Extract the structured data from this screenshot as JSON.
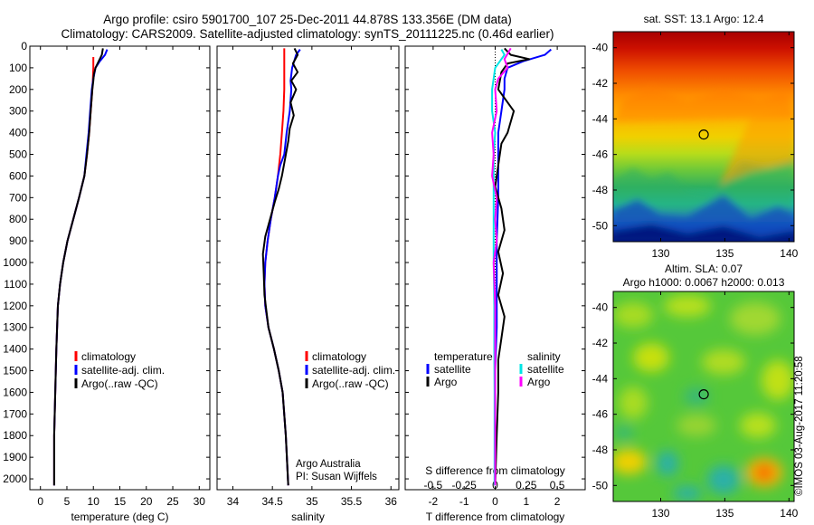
{
  "header": {
    "line1": "Argo profile: csiro 5901700_107 25-Dec-2011 44.878S 133.356E (DM data)",
    "line2": "Climatology: CARS2009. Satellite-adjusted climatology: synTS_20111225.nc (0.46d earlier)"
  },
  "credit": {
    "org": "Argo Australia",
    "pi": "PI: Susan Wijffels"
  },
  "timestamp": "©IMOS 03-Aug-2017 11:20:58",
  "colors": {
    "climatology": "#ff0000",
    "satellite": "#0000ff",
    "argo": "#000000",
    "sal_satellite": "#00e5e5",
    "sal_argo": "#ff00ff"
  },
  "chart_data": [
    {
      "id": "temperature",
      "type": "line",
      "xlabel": "temperature (deg C)",
      "x_ticks": [
        0,
        5,
        10,
        15,
        20,
        25,
        30
      ],
      "xlim": [
        -2,
        32
      ],
      "y_ticks": [
        0,
        100,
        200,
        300,
        400,
        500,
        600,
        700,
        800,
        900,
        1000,
        1100,
        1200,
        1300,
        1400,
        1500,
        1600,
        1700,
        1800,
        1900,
        2000
      ],
      "ylim": [
        0,
        2050
      ],
      "y_reversed": true,
      "legend": [
        "climatology",
        "satellite-adj. clim.",
        "Argo(..raw -QC)"
      ],
      "series": [
        {
          "name": "climatology",
          "color": "#ff0000",
          "x": [
            10.0,
            10.0,
            9.9,
            9.8,
            9.5,
            9.2,
            8.8,
            8.3,
            7.3,
            6.2,
            5.1,
            4.3,
            3.7,
            3.3,
            3.0,
            2.8,
            2.6,
            2.6
          ],
          "y": [
            50,
            100,
            150,
            200,
            300,
            400,
            500,
            600,
            700,
            800,
            900,
            1000,
            1100,
            1200,
            1400,
            1600,
            1800,
            2030
          ]
        },
        {
          "name": "satellite-adj. clim.",
          "color": "#0000ff",
          "x": [
            12.6,
            12.2,
            11.2,
            10.4,
            10.0,
            9.7,
            9.4,
            9.1,
            8.7,
            8.3,
            7.3,
            6.2,
            5.1,
            4.3,
            3.7,
            3.3,
            3.0,
            2.8,
            2.6,
            2.6
          ],
          "y": [
            15,
            40,
            70,
            100,
            150,
            200,
            300,
            400,
            500,
            600,
            700,
            800,
            900,
            1000,
            1100,
            1200,
            1400,
            1600,
            1800,
            2030
          ]
        },
        {
          "name": "Argo(..raw -QC)",
          "color": "#000000",
          "x": [
            11.8,
            11.6,
            11.0,
            10.4,
            10.1,
            10.0,
            9.8,
            9.5,
            9.2,
            8.8,
            8.3,
            7.3,
            6.2,
            5.1,
            4.3,
            3.7,
            3.3,
            3.0,
            2.8,
            2.6,
            2.6
          ],
          "y": [
            10,
            40,
            70,
            100,
            130,
            160,
            200,
            300,
            400,
            500,
            600,
            700,
            800,
            900,
            1000,
            1100,
            1200,
            1400,
            1600,
            1800,
            2030
          ]
        }
      ]
    },
    {
      "id": "salinity",
      "type": "line",
      "xlabel": "salinity",
      "x_ticks": [
        34,
        34.5,
        35,
        35.5,
        36
      ],
      "xlim": [
        33.8,
        36.1
      ],
      "y_ticks": [
        0,
        100,
        200,
        300,
        400,
        500,
        600,
        700,
        800,
        900,
        1000,
        1100,
        1200,
        1300,
        1400,
        1500,
        1600,
        1700,
        1800,
        1900,
        2000
      ],
      "ylim": [
        0,
        2050
      ],
      "y_reversed": true,
      "legend": [
        "climatology",
        "satellite-adj. clim.",
        "Argo(..raw -QC)"
      ],
      "series": [
        {
          "name": "climatology",
          "color": "#ff0000",
          "x": [
            34.65,
            34.65,
            34.65,
            34.64,
            34.62,
            34.6,
            34.57,
            34.53,
            34.48,
            34.44,
            34.41,
            34.4,
            34.41,
            34.45,
            34.52,
            34.58,
            34.63,
            34.67,
            34.7
          ],
          "y": [
            10,
            100,
            200,
            300,
            400,
            500,
            600,
            700,
            800,
            900,
            1000,
            1100,
            1200,
            1300,
            1400,
            1500,
            1600,
            1800,
            2030
          ]
        },
        {
          "name": "satellite-adj. clim.",
          "color": "#0000ff",
          "x": [
            34.85,
            34.8,
            34.75,
            34.73,
            34.74,
            34.72,
            34.68,
            34.65,
            34.6,
            34.57,
            34.53,
            34.48,
            34.44,
            34.41,
            34.4,
            34.41,
            34.45,
            34.52,
            34.58,
            34.63,
            34.67,
            34.7
          ],
          "y": [
            15,
            40,
            100,
            160,
            200,
            300,
            400,
            500,
            550,
            600,
            700,
            800,
            900,
            1000,
            1100,
            1200,
            1300,
            1400,
            1500,
            1600,
            1800,
            2030
          ]
        },
        {
          "name": "Argo(..raw -QC)",
          "color": "#000000",
          "x": [
            34.78,
            34.82,
            34.76,
            34.82,
            34.74,
            34.8,
            34.73,
            34.77,
            34.72,
            34.7,
            34.66,
            34.62,
            34.58,
            34.53,
            34.47,
            34.41,
            34.38,
            34.39,
            34.4,
            34.45,
            34.52,
            34.58,
            34.63,
            34.67,
            34.7
          ],
          "y": [
            10,
            40,
            80,
            120,
            160,
            200,
            260,
            320,
            380,
            440,
            520,
            600,
            660,
            720,
            800,
            880,
            960,
            1050,
            1150,
            1300,
            1400,
            1500,
            1600,
            1800,
            2030
          ]
        }
      ]
    },
    {
      "id": "difference",
      "type": "line",
      "xlabel": "T difference from climatology",
      "x_ticks": [
        -2,
        -1,
        0,
        1,
        2
      ],
      "top_label": "S difference from climatology",
      "s_ticks": [
        -0.5,
        -0.25,
        0,
        0.25,
        0.5
      ],
      "xlim": [
        -2.9,
        2.9
      ],
      "y_ticks": [
        0,
        100,
        200,
        300,
        400,
        500,
        600,
        700,
        800,
        900,
        1000,
        1100,
        1200,
        1300,
        1400,
        1500,
        1600,
        1700,
        1800,
        1900,
        2000
      ],
      "ylim": [
        0,
        2050
      ],
      "y_reversed": true,
      "legend_headings": [
        "temperature",
        "salinity"
      ],
      "legend": [
        "satellite",
        "Argo",
        "satellite",
        "Argo"
      ],
      "series": [
        {
          "name": "satellite",
          "group": "temperature",
          "color": "#0000ff",
          "x": [
            1.8,
            1.6,
            0.9,
            0.4,
            0.3,
            0.3,
            0.2,
            0.1,
            0.1,
            0.1,
            0.05,
            0.05,
            0.05,
            0.0,
            0.0,
            0.0,
            0.0
          ],
          "y": [
            15,
            40,
            70,
            100,
            150,
            200,
            300,
            400,
            500,
            700,
            900,
            1100,
            1300,
            1500,
            1700,
            1900,
            2030
          ]
        },
        {
          "name": "Argo",
          "group": "temperature",
          "color": "#000000",
          "x": [
            0.3,
            0.5,
            1.1,
            0.4,
            0.2,
            0.1,
            0.6,
            0.4,
            0.2,
            0.1,
            0.0,
            0.2,
            0.3,
            0.1,
            0.25,
            0.1,
            0.3,
            0.2,
            0.1,
            0.1,
            0.05,
            0.0
          ],
          "y": [
            10,
            40,
            60,
            80,
            120,
            200,
            300,
            400,
            450,
            550,
            650,
            750,
            850,
            950,
            1050,
            1150,
            1250,
            1350,
            1450,
            1600,
            1800,
            2030
          ]
        },
        {
          "name": "satellite",
          "group": "salinity",
          "color": "#00e5e5",
          "x": [
            0.2,
            0.3,
            0.0,
            -0.1,
            -0.1,
            0.0,
            -0.05,
            -0.05,
            -0.05,
            -0.05,
            -0.03,
            -0.03,
            -0.02,
            -0.02,
            -0.02
          ],
          "y": [
            15,
            40,
            100,
            200,
            300,
            400,
            500,
            600,
            800,
            1000,
            1200,
            1400,
            1600,
            1800,
            2030
          ]
        },
        {
          "name": "Argo",
          "group": "salinity",
          "color": "#ff00ff",
          "x": [
            0.5,
            0.3,
            0.4,
            0.1,
            0.0,
            0.05,
            -0.1,
            -0.05,
            -0.1,
            0.05,
            0.0,
            0.05,
            -0.05,
            0.0,
            0.0,
            0.0
          ],
          "y": [
            10,
            60,
            100,
            150,
            200,
            300,
            400,
            500,
            600,
            700,
            800,
            900,
            1000,
            1200,
            1600,
            2030
          ]
        }
      ]
    },
    {
      "id": "sst-map",
      "type": "heatmap",
      "title": "sat. SST: 13.1  Argo: 12.4",
      "x_ticks": [
        130,
        135,
        140
      ],
      "y_ticks": [
        -40,
        -42,
        -44,
        -46,
        -48,
        -50
      ],
      "xlim": [
        126.3,
        140.4
      ],
      "ylim": [
        -50.9,
        -39.1
      ],
      "marker": {
        "lon": 133.356,
        "lat": -44.878
      }
    },
    {
      "id": "sla-map",
      "type": "heatmap",
      "title": "Altim. SLA: 0.07",
      "subtitle": "Argo h1000: 0.0067  h2000: 0.013",
      "x_ticks": [
        130,
        135,
        140
      ],
      "y_ticks": [
        -40,
        -42,
        -44,
        -46,
        -48,
        -50
      ],
      "xlim": [
        126.3,
        140.4
      ],
      "ylim": [
        -50.9,
        -39.1
      ],
      "marker": {
        "lon": 133.356,
        "lat": -44.878
      }
    }
  ]
}
